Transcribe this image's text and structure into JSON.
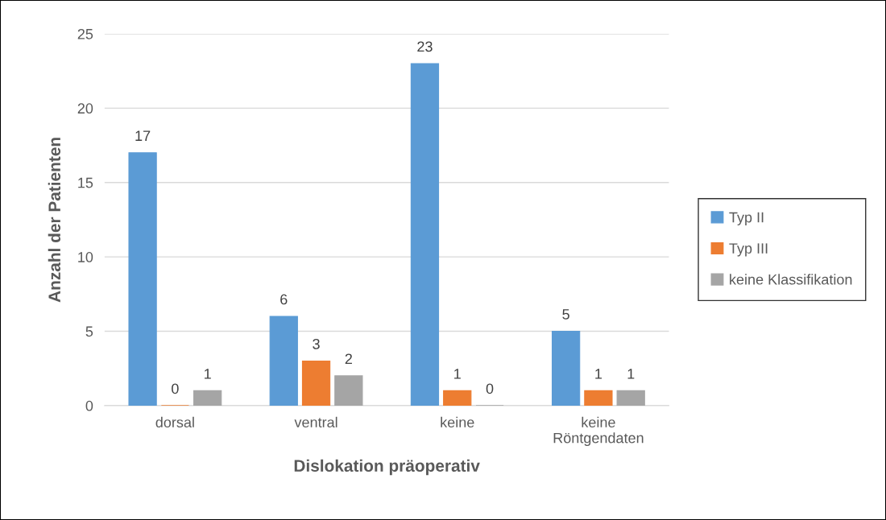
{
  "chart_data": {
    "type": "bar",
    "xlabel": "Dislokation präoperativ",
    "ylabel": "Anzahl der Patienten",
    "categories": [
      "dorsal",
      "ventral",
      "keine",
      "keine\nRöntgendaten"
    ],
    "series": [
      {
        "name": "Typ II",
        "color": "#5b9bd5",
        "values": [
          17,
          6,
          23,
          5
        ]
      },
      {
        "name": "Typ III",
        "color": "#ed7d31",
        "values": [
          0,
          3,
          1,
          1
        ]
      },
      {
        "name": "keine Klassifikation",
        "color": "#a5a5a5",
        "values": [
          1,
          2,
          0,
          1
        ]
      }
    ],
    "ylim": [
      0,
      25
    ],
    "yticks": [
      0,
      5,
      10,
      15,
      20,
      25
    ],
    "grid": "y",
    "legend": "right",
    "data_labels": true
  }
}
